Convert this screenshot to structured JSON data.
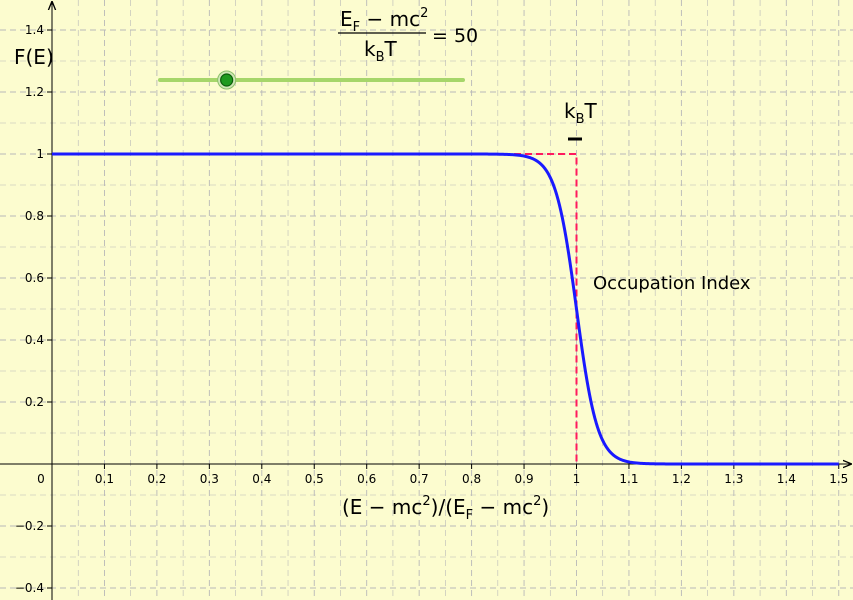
{
  "chart_data": {
    "type": "line",
    "title": "",
    "xlabel_parts": {
      "open": "(E − mc",
      "sup1": "2",
      "mid": ")/(E",
      "sub": "F",
      "dash": " − mc",
      "sup2": "2",
      "close": ")"
    },
    "ylabel": "F(E)",
    "xlim": [
      0,
      1.5
    ],
    "ylim": [
      -0.4,
      1.4
    ],
    "x_ticks": [
      "0",
      "0.1",
      "0.2",
      "0.3",
      "0.4",
      "0.5",
      "0.6",
      "0.7",
      "0.8",
      "0.9",
      "1",
      "1.1",
      "1.2",
      "1.3",
      "1.4",
      "1.5"
    ],
    "y_ticks": [
      "1.4",
      "1.2",
      "1",
      "0.8",
      "0.6",
      "0.4",
      "0.2",
      "−0.2",
      "−0.4"
    ],
    "x_tick_values": [
      0,
      0.1,
      0.2,
      0.3,
      0.4,
      0.5,
      0.6,
      0.7,
      0.8,
      0.9,
      1,
      1.1,
      1.2,
      1.3,
      1.4,
      1.5
    ],
    "y_tick_values": [
      1.4,
      1.2,
      1,
      0.8,
      0.6,
      0.4,
      0.2,
      -0.2,
      -0.4
    ],
    "grid": true,
    "series": [
      {
        "name": "",
        "kind": "fermi-dirac",
        "color": "#1a1aff",
        "ratio": 50,
        "x": [
          0,
          0.1,
          0.2,
          0.3,
          0.4,
          0.5,
          0.6,
          0.7,
          0.8,
          0.85,
          0.9,
          0.92,
          0.94,
          0.96,
          0.97,
          0.98,
          0.99,
          1.0,
          1.01,
          1.02,
          1.03,
          1.04,
          1.06,
          1.08,
          1.1,
          1.15,
          1.2,
          1.3,
          1.4,
          1.5
        ],
        "y": [
          1,
          1,
          1,
          1,
          1,
          1,
          1,
          1,
          1,
          0.999,
          0.993,
          0.982,
          0.953,
          0.881,
          0.818,
          0.731,
          0.622,
          0.5,
          0.378,
          0.269,
          0.182,
          0.119,
          0.047,
          0.018,
          0.007,
          0.001,
          0,
          0,
          0,
          0
        ]
      },
      {
        "name": "",
        "kind": "step",
        "color": "#ff1a5e",
        "dashed": true,
        "x": [
          0,
          1,
          1
        ],
        "y": [
          1,
          1,
          0
        ]
      }
    ],
    "annotations": {
      "occupation_label": "Occupation Index",
      "kbt": {
        "main": "k",
        "sub": "B",
        "end": "T"
      },
      "formula": {
        "num_main": "E",
        "num_sub": "F",
        "num_rest": " − mc",
        "num_sup": "2",
        "den_main": "k",
        "den_sub": "B",
        "den_end": "T",
        "equals": "= 50"
      }
    },
    "slider": {
      "value": 50,
      "fraction": 0.22
    },
    "colors": {
      "background": "#fcfccf",
      "grid": "#b8b8b8",
      "axis": "#000000",
      "curve": "#1a1aff",
      "step": "#ff1a5e",
      "slider_track": "#a6d66a",
      "slider_knob": "#1f9a1f"
    }
  }
}
